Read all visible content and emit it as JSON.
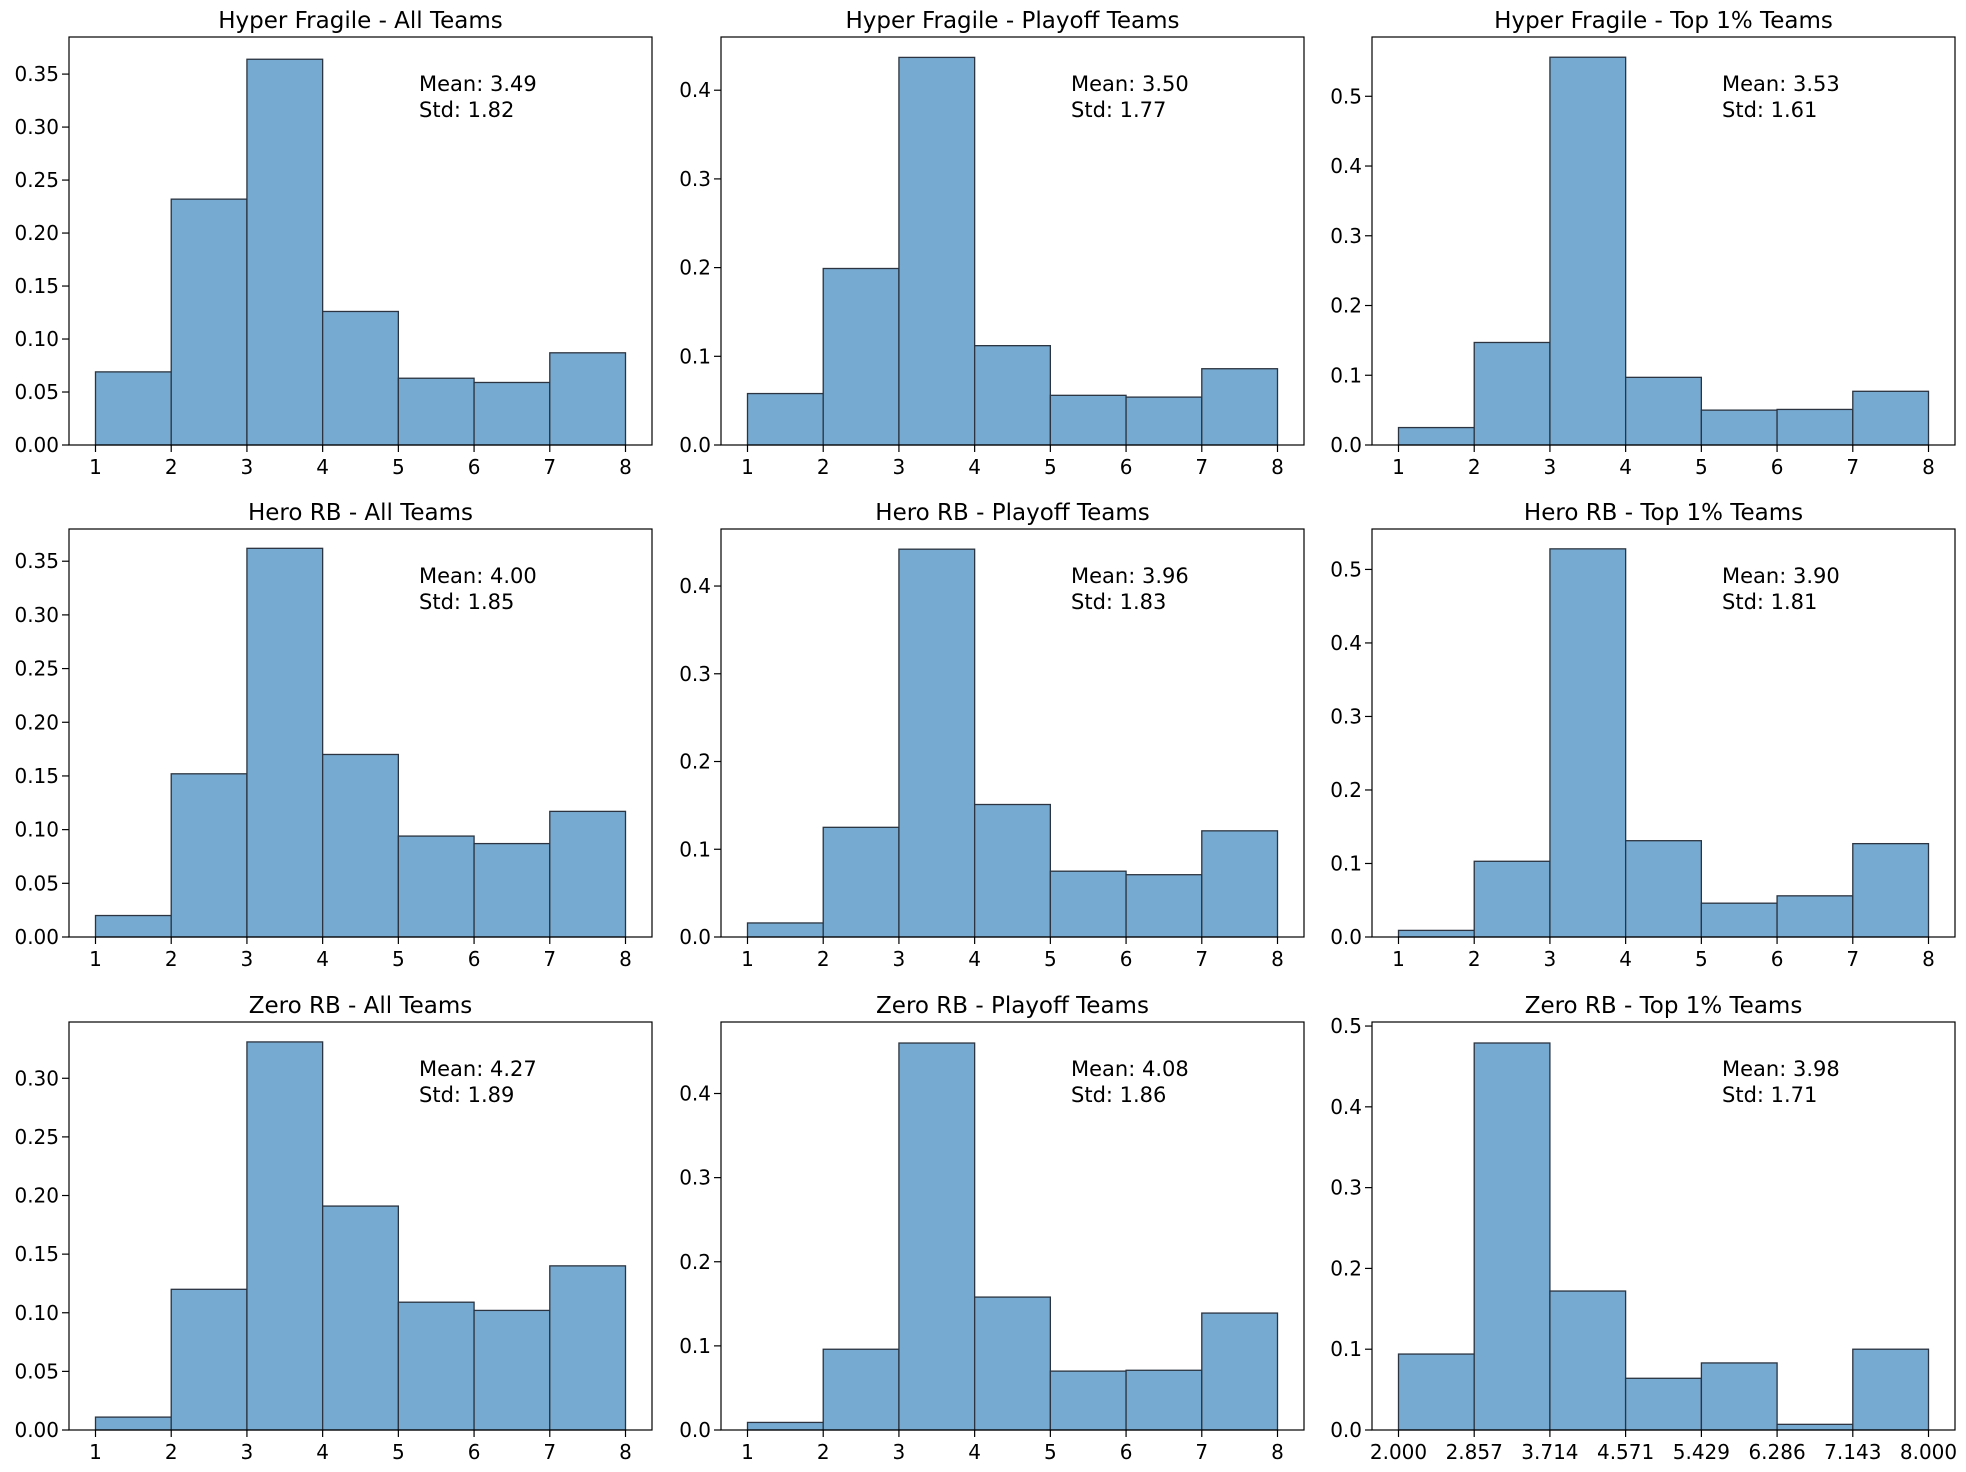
{
  "figure": {
    "bar_fill": "#77aad1",
    "bar_edge": "#2b3440",
    "background": "#ffffff"
  },
  "chart_data": [
    {
      "type": "bar",
      "title": "Hyper Fragile - All Teams",
      "bin_edges": [
        1,
        2,
        3,
        4,
        5,
        6,
        7,
        8
      ],
      "values": [
        0.069,
        0.232,
        0.364,
        0.126,
        0.063,
        0.059,
        0.087
      ],
      "xlim": [
        0.65,
        8.35
      ],
      "ylim": [
        0,
        0.385
      ],
      "xticks": [
        "1",
        "2",
        "3",
        "4",
        "5",
        "6",
        "7",
        "8"
      ],
      "yticks": [
        "0.00",
        "0.05",
        "0.10",
        "0.15",
        "0.20",
        "0.25",
        "0.30",
        "0.35"
      ],
      "annotation": [
        "Mean: 3.49",
        "Std: 1.82"
      ],
      "grid": false
    },
    {
      "type": "bar",
      "title": "Hyper Fragile - Playoff Teams",
      "bin_edges": [
        1,
        2,
        3,
        4,
        5,
        6,
        7,
        8
      ],
      "values": [
        0.058,
        0.199,
        0.437,
        0.112,
        0.056,
        0.054,
        0.086
      ],
      "xlim": [
        0.65,
        8.35
      ],
      "ylim": [
        0,
        0.46
      ],
      "xticks": [
        "1",
        "2",
        "3",
        "4",
        "5",
        "6",
        "7",
        "8"
      ],
      "yticks": [
        "0.0",
        "0.1",
        "0.2",
        "0.3",
        "0.4"
      ],
      "annotation": [
        "Mean: 3.50",
        "Std: 1.77"
      ],
      "grid": false
    },
    {
      "type": "bar",
      "title": "Hyper Fragile - Top 1% Teams",
      "bin_edges": [
        1,
        2,
        3,
        4,
        5,
        6,
        7,
        8
      ],
      "values": [
        0.025,
        0.147,
        0.556,
        0.097,
        0.05,
        0.051,
        0.077
      ],
      "xlim": [
        0.65,
        8.35
      ],
      "ylim": [
        0,
        0.585
      ],
      "xticks": [
        "1",
        "2",
        "3",
        "4",
        "5",
        "6",
        "7",
        "8"
      ],
      "yticks": [
        "0.0",
        "0.1",
        "0.2",
        "0.3",
        "0.4",
        "0.5"
      ],
      "annotation": [
        "Mean: 3.53",
        "Std: 1.61"
      ],
      "grid": false
    },
    {
      "type": "bar",
      "title": "Hero RB - All Teams",
      "bin_edges": [
        1,
        2,
        3,
        4,
        5,
        6,
        7,
        8
      ],
      "values": [
        0.02,
        0.152,
        0.362,
        0.17,
        0.094,
        0.087,
        0.117
      ],
      "xlim": [
        0.65,
        8.35
      ],
      "ylim": [
        0,
        0.38
      ],
      "xticks": [
        "1",
        "2",
        "3",
        "4",
        "5",
        "6",
        "7",
        "8"
      ],
      "yticks": [
        "0.00",
        "0.05",
        "0.10",
        "0.15",
        "0.20",
        "0.25",
        "0.30",
        "0.35"
      ],
      "annotation": [
        "Mean: 4.00",
        "Std: 1.85"
      ],
      "grid": false
    },
    {
      "type": "bar",
      "title": "Hero RB - Playoff Teams",
      "bin_edges": [
        1,
        2,
        3,
        4,
        5,
        6,
        7,
        8
      ],
      "values": [
        0.016,
        0.125,
        0.442,
        0.151,
        0.075,
        0.071,
        0.121
      ],
      "xlim": [
        0.65,
        8.35
      ],
      "ylim": [
        0,
        0.465
      ],
      "xticks": [
        "1",
        "2",
        "3",
        "4",
        "5",
        "6",
        "7",
        "8"
      ],
      "yticks": [
        "0.0",
        "0.1",
        "0.2",
        "0.3",
        "0.4"
      ],
      "annotation": [
        "Mean: 3.96",
        "Std: 1.83"
      ],
      "grid": false
    },
    {
      "type": "bar",
      "title": "Hero RB - Top 1% Teams",
      "bin_edges": [
        1,
        2,
        3,
        4,
        5,
        6,
        7,
        8
      ],
      "values": [
        0.009,
        0.103,
        0.528,
        0.131,
        0.046,
        0.056,
        0.127
      ],
      "xlim": [
        0.65,
        8.35
      ],
      "ylim": [
        0,
        0.555
      ],
      "xticks": [
        "1",
        "2",
        "3",
        "4",
        "5",
        "6",
        "7",
        "8"
      ],
      "yticks": [
        "0.0",
        "0.1",
        "0.2",
        "0.3",
        "0.4",
        "0.5"
      ],
      "annotation": [
        "Mean: 3.90",
        "Std: 1.81"
      ],
      "grid": false
    },
    {
      "type": "bar",
      "title": "Zero RB - All Teams",
      "bin_edges": [
        1,
        2,
        3,
        4,
        5,
        6,
        7,
        8
      ],
      "values": [
        0.011,
        0.12,
        0.331,
        0.191,
        0.109,
        0.102,
        0.14
      ],
      "xlim": [
        0.65,
        8.35
      ],
      "ylim": [
        0,
        0.348
      ],
      "xticks": [
        "1",
        "2",
        "3",
        "4",
        "5",
        "6",
        "7",
        "8"
      ],
      "yticks": [
        "0.00",
        "0.05",
        "0.10",
        "0.15",
        "0.20",
        "0.25",
        "0.30"
      ],
      "annotation": [
        "Mean: 4.27",
        "Std: 1.89"
      ],
      "grid": false
    },
    {
      "type": "bar",
      "title": "Zero RB - Playoff Teams",
      "bin_edges": [
        1,
        2,
        3,
        4,
        5,
        6,
        7,
        8
      ],
      "values": [
        0.009,
        0.096,
        0.46,
        0.158,
        0.07,
        0.071,
        0.139
      ],
      "xlim": [
        0.65,
        8.35
      ],
      "ylim": [
        0,
        0.485
      ],
      "xticks": [
        "1",
        "2",
        "3",
        "4",
        "5",
        "6",
        "7",
        "8"
      ],
      "yticks": [
        "0.0",
        "0.1",
        "0.2",
        "0.3",
        "0.4"
      ],
      "annotation": [
        "Mean: 4.08",
        "Std: 1.86"
      ],
      "grid": false
    },
    {
      "type": "bar",
      "title": "Zero RB - Top 1% Teams",
      "bin_edges": [
        2.0,
        2.857,
        3.714,
        4.571,
        5.429,
        6.286,
        7.143,
        8.0
      ],
      "values": [
        0.094,
        0.479,
        0.172,
        0.064,
        0.083,
        0.007,
        0.1
      ],
      "xlim": [
        1.7,
        8.3
      ],
      "ylim": [
        0,
        0.505
      ],
      "xticks": [
        "2.000",
        "2.857",
        "3.714",
        "4.571",
        "5.429",
        "6.286",
        "7.143",
        "8.000"
      ],
      "yticks": [
        "0.0",
        "0.1",
        "0.2",
        "0.3",
        "0.4",
        "0.5"
      ],
      "annotation": [
        "Mean: 3.98",
        "Std: 1.71"
      ],
      "grid": false
    }
  ]
}
